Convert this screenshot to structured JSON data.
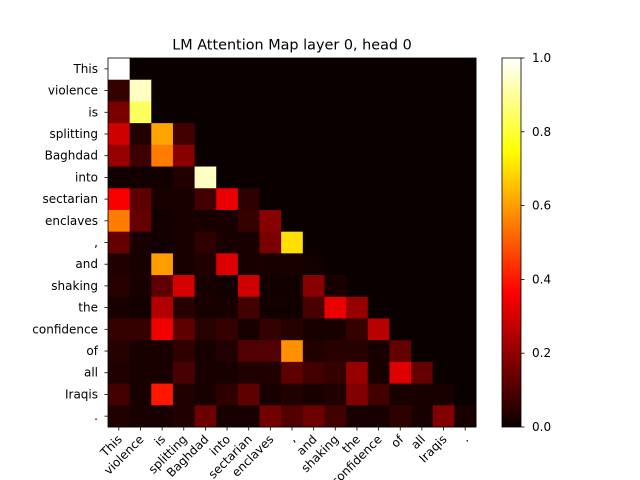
{
  "chart_data": {
    "type": "heatmap",
    "title": "LM Attention Map layer 0, head 0",
    "xlabel": "",
    "ylabel": "",
    "tokens": [
      "This",
      "violence",
      "is",
      "splitting",
      "Baghdad",
      "into",
      "sectarian",
      "enclaves",
      ",",
      "and",
      "shaking",
      "the",
      "confidence",
      "of",
      "all",
      "Iraqis",
      "."
    ],
    "colorbar": {
      "colormap": "hot",
      "range": [
        0.0,
        1.0
      ],
      "ticks": [
        0.0,
        0.2,
        0.4,
        0.6,
        0.8,
        1.0
      ],
      "tick_labels": [
        "0.0",
        "0.2",
        "0.4",
        "0.6",
        "0.8",
        "1.0"
      ]
    },
    "values": [
      [
        1.0,
        0,
        0,
        0,
        0,
        0,
        0,
        0,
        0,
        0,
        0,
        0,
        0,
        0,
        0,
        0,
        0
      ],
      [
        0.06,
        0.94,
        0,
        0,
        0,
        0,
        0,
        0,
        0,
        0,
        0,
        0,
        0,
        0,
        0,
        0,
        0
      ],
      [
        0.16,
        0.84,
        0.0,
        0,
        0,
        0,
        0,
        0,
        0,
        0,
        0,
        0,
        0,
        0,
        0,
        0,
        0
      ],
      [
        0.28,
        0.03,
        0.61,
        0.08,
        0,
        0,
        0,
        0,
        0,
        0,
        0,
        0,
        0,
        0,
        0,
        0,
        0
      ],
      [
        0.2,
        0.07,
        0.55,
        0.18,
        0.0,
        0,
        0,
        0,
        0,
        0,
        0,
        0,
        0,
        0,
        0,
        0,
        0
      ],
      [
        0.01,
        0.01,
        0.01,
        0.03,
        0.94,
        0,
        0,
        0,
        0,
        0,
        0,
        0,
        0,
        0,
        0,
        0,
        0
      ],
      [
        0.34,
        0.12,
        0.02,
        0.02,
        0.08,
        0.32,
        0.05,
        0,
        0,
        0,
        0,
        0,
        0,
        0,
        0,
        0,
        0
      ],
      [
        0.55,
        0.13,
        0.01,
        0.02,
        0.02,
        0.02,
        0.06,
        0.18,
        0,
        0,
        0,
        0,
        0,
        0,
        0,
        0,
        0
      ],
      [
        0.13,
        0.02,
        0.01,
        0.02,
        0.05,
        0.02,
        0.02,
        0.16,
        0.7,
        0,
        0,
        0,
        0,
        0,
        0,
        0,
        0
      ],
      [
        0.03,
        0.02,
        0.6,
        0.02,
        0.03,
        0.3,
        0.02,
        0.02,
        0.02,
        0.01,
        0,
        0,
        0,
        0,
        0,
        0,
        0
      ],
      [
        0.04,
        0.02,
        0.12,
        0.29,
        0.02,
        0.01,
        0.28,
        0.01,
        0.01,
        0.18,
        0.02,
        0,
        0,
        0,
        0,
        0,
        0
      ],
      [
        0.02,
        0.01,
        0.24,
        0.04,
        0.02,
        0.02,
        0.08,
        0.01,
        0.01,
        0.09,
        0.32,
        0.2,
        0,
        0,
        0,
        0,
        0
      ],
      [
        0.06,
        0.06,
        0.33,
        0.12,
        0.04,
        0.06,
        0.02,
        0.06,
        0.04,
        0.02,
        0.02,
        0.06,
        0.25,
        0,
        0,
        0,
        0
      ],
      [
        0.04,
        0.02,
        0.02,
        0.05,
        0.02,
        0.03,
        0.1,
        0.1,
        0.58,
        0.03,
        0.04,
        0.04,
        0.02,
        0.13,
        0,
        0,
        0
      ],
      [
        0.03,
        0.02,
        0.02,
        0.09,
        0.02,
        0.02,
        0.03,
        0.03,
        0.12,
        0.08,
        0.06,
        0.2,
        0.02,
        0.3,
        0.13,
        0,
        0
      ],
      [
        0.08,
        0.02,
        0.4,
        0.03,
        0.02,
        0.05,
        0.12,
        0.02,
        0.03,
        0.02,
        0.03,
        0.17,
        0.08,
        0.02,
        0.02,
        0.02,
        0
      ],
      [
        0.03,
        0.02,
        0.02,
        0.03,
        0.14,
        0.02,
        0.02,
        0.15,
        0.1,
        0.14,
        0.08,
        0.02,
        0.02,
        0.05,
        0.02,
        0.17,
        0.02
      ]
    ]
  }
}
